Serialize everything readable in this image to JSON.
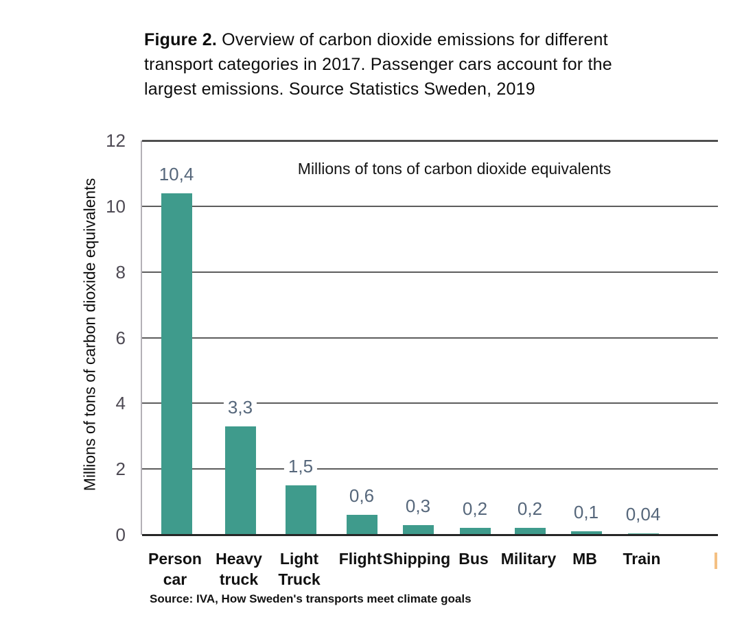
{
  "caption": {
    "line1_prefix": "Figure 2.",
    "line1_rest": " Overview of carbon dioxide emissions for different",
    "line2": "transport categories in 2017. Passenger cars account for the",
    "line3": "largest emissions. Source Statistics Sweden, 2019"
  },
  "chart_data": {
    "type": "bar",
    "categories": [
      "Person car",
      "Heavy truck",
      "Light Truck",
      "Flight",
      "Shipping",
      "Bus",
      "Military",
      "MB",
      "Train"
    ],
    "values": [
      10.4,
      3.3,
      1.5,
      0.6,
      0.3,
      0.2,
      0.2,
      0.1,
      0.04
    ],
    "value_labels": [
      "10,4",
      "3,3",
      "1,5",
      "0,6",
      "0,3",
      "0,2",
      "0,2",
      "0,1",
      "0,04"
    ],
    "title": "Millions of tons of carbon dioxide equivalents",
    "xlabel": "",
    "ylabel": "Millions of tons of carbon dioxide equivalents",
    "ylim": [
      0,
      12
    ],
    "yticks": [
      12,
      10,
      8,
      6,
      4,
      2,
      0
    ],
    "grid": true,
    "legend": false
  },
  "source_note": "Source: IVA, How Sweden's transports meet climate goals",
  "colors": {
    "bar": "#3f9b8c",
    "bar_last": "#5fb3a1",
    "gridline": "#5c5c5c",
    "axis": "#262626",
    "value_label": "#56677b",
    "tick_label": "#4e4a54",
    "artifact": "#f4c083"
  }
}
